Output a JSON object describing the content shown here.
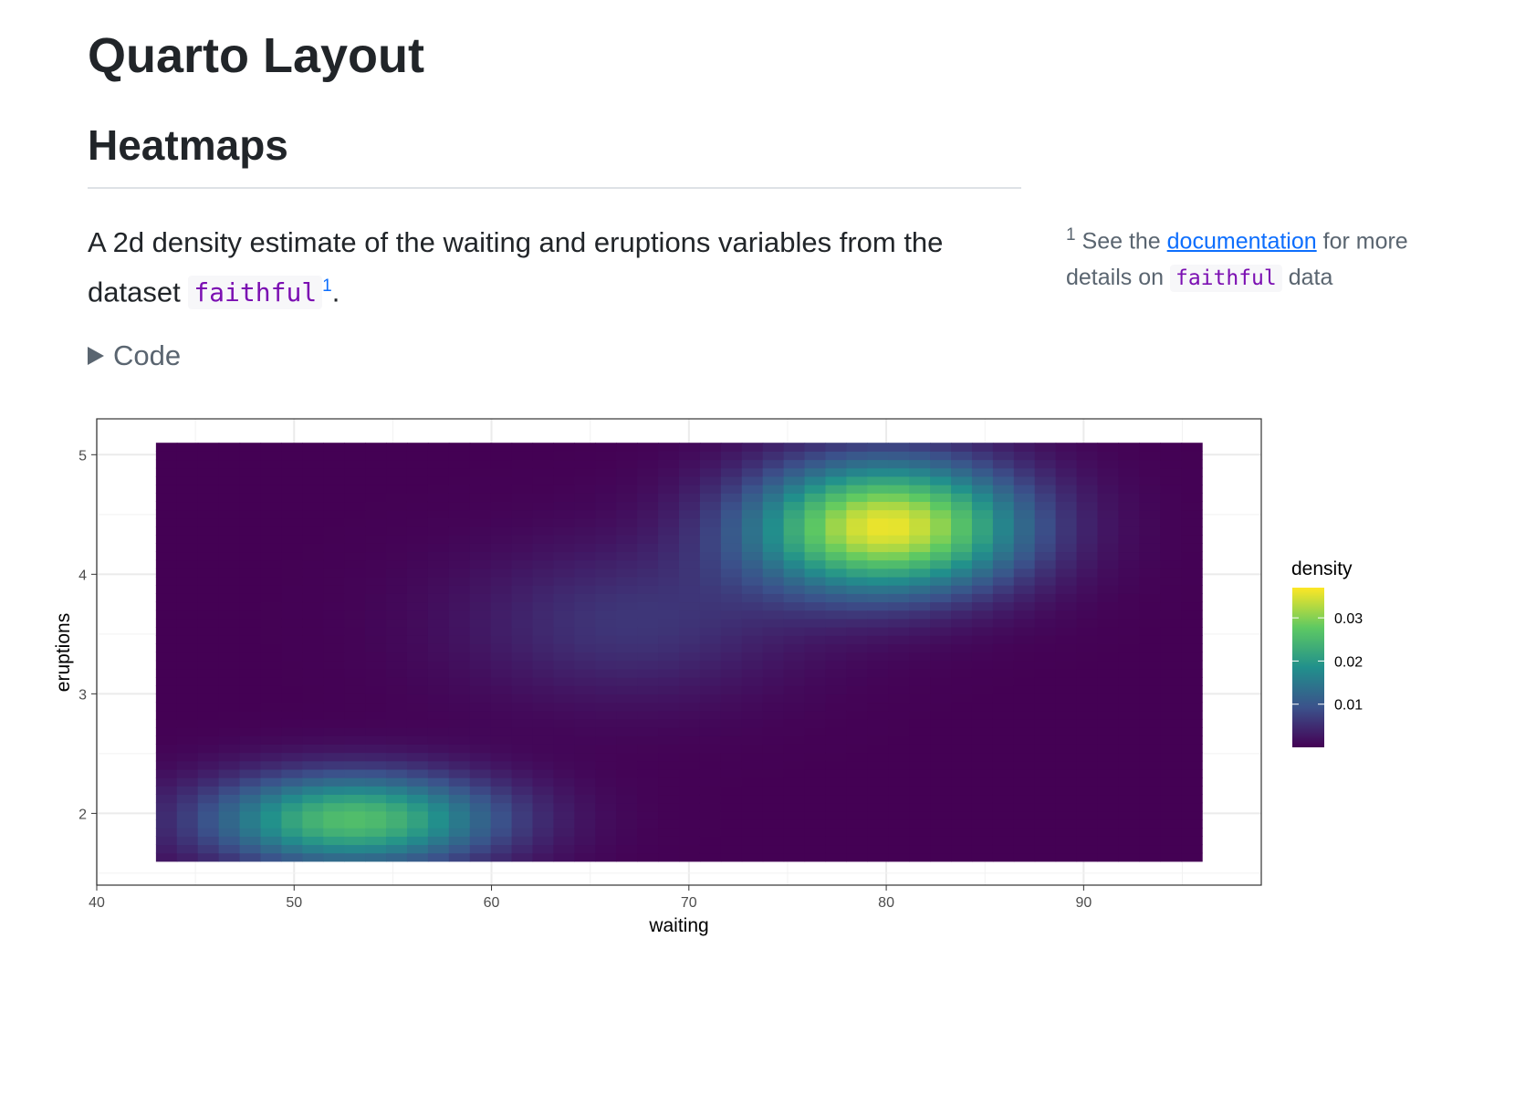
{
  "page": {
    "title": "Quarto Layout",
    "section": "Heatmaps",
    "paragraph_text": "A 2d density estimate of the waiting and eruptions variables from the dataset ",
    "dataset_code": "faithful",
    "footnote_ref": "1",
    "paragraph_end": ".",
    "code_toggle": "Code"
  },
  "aside": {
    "number": "1",
    "text_before": " See the ",
    "link": "documentation",
    "text_mid": " for more details on ",
    "code": "faithful",
    "text_after": " data"
  },
  "chart_data": {
    "type": "heatmap",
    "xlabel": "waiting",
    "ylabel": "eruptions",
    "xlim": [
      40,
      99
    ],
    "ylim": [
      1.4,
      5.3
    ],
    "x_ticks": [
      40,
      50,
      60,
      70,
      80,
      90
    ],
    "y_ticks": [
      2,
      3,
      4,
      5
    ],
    "raster_extent": {
      "waiting": [
        43,
        96
      ],
      "eruptions": [
        1.6,
        5.1
      ]
    },
    "grid": true,
    "colormap": "viridis",
    "legend": {
      "title": "density",
      "position": "right",
      "ticks": [
        0.01,
        0.02,
        0.03
      ],
      "range": [
        0,
        0.037
      ]
    },
    "density_peaks": [
      {
        "waiting": 80,
        "eruptions": 4.4,
        "density": 0.036,
        "sd_waiting": 4.8,
        "sd_eruptions": 0.38
      },
      {
        "waiting": 53,
        "eruptions": 1.95,
        "density": 0.026,
        "sd_waiting": 5.2,
        "sd_eruptions": 0.27
      },
      {
        "waiting": 67,
        "eruptions": 3.6,
        "density": 0.006,
        "sd_waiting": 6,
        "sd_eruptions": 0.45
      }
    ],
    "colors": {
      "low": "#440154",
      "mid": "#21908C",
      "high": "#FDE725"
    }
  }
}
